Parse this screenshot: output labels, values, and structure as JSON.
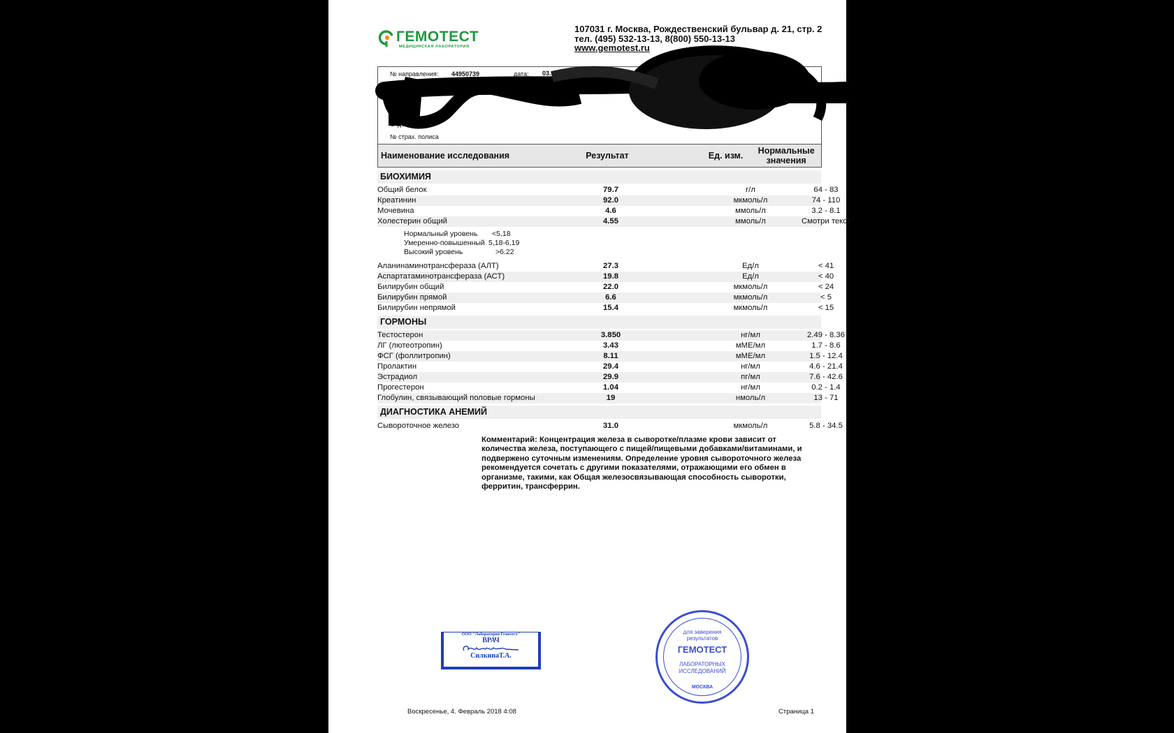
{
  "lab": {
    "logo_text": "ГЕМОТЕСТ",
    "logo_subtitle": "МЕДИЦИНСКАЯ ЛАБОРАТОРИЯ",
    "brand_color": "#1d9a3e",
    "address": "107031 г. Москва, Рождественский бульвар д. 21, стр. 2",
    "phone": "тел. (495) 532-13-13, 8(800) 550-13-13",
    "website": "www.gemotest.ru"
  },
  "info": {
    "referral_label": "№ направления:",
    "referral_number": "44950739",
    "date_label": "дата:",
    "date_value": "03.02.2018",
    "department_label": "Отделе",
    "policy_label": "№ страх. полиса"
  },
  "table_header": {
    "name": "Наименование исследования",
    "result": "Результат",
    "unit": "Ед. изм.",
    "norm": "Нормальные значения"
  },
  "sections": [
    {
      "title": "БИОХИМИЯ",
      "rows": [
        {
          "name": "Общий белок",
          "result": "79.7",
          "unit": "г/л",
          "norm": "64 - 83"
        },
        {
          "name": "Креатинин",
          "result": "92.0",
          "unit": "мкмоль/л",
          "norm": "74 - 110"
        },
        {
          "name": "Мочевина",
          "result": "4.6",
          "unit": "ммоль/л",
          "norm": "3.2 - 8.1"
        },
        {
          "name": "Холестерин общий",
          "result": "4.55",
          "unit": "ммоль/л",
          "norm": "Смотри текст"
        }
      ],
      "notes": [
        {
          "label": "Нормальный уровень",
          "value": "<5,18"
        },
        {
          "label": "Умеренно-повышенный",
          "value": "5,18-6,19"
        },
        {
          "label": "Высокий уровень",
          "value": ">6.22"
        }
      ],
      "rows_after_notes": [
        {
          "name": "Аланинаминотрансфераза (АЛТ)",
          "result": "27.3",
          "unit": "Ед/л",
          "norm": "< 41"
        },
        {
          "name": "Аспартатаминотрансфераза (АСТ)",
          "result": "19.8",
          "unit": "Ед/л",
          "norm": "< 40"
        },
        {
          "name": "Билирубин общий",
          "result": "22.0",
          "unit": "мкмоль/л",
          "norm": "< 24"
        },
        {
          "name": "Билирубин прямой",
          "result": "6.6",
          "unit": "мкмоль/л",
          "norm": "< 5"
        },
        {
          "name": "Билирубин непрямой",
          "result": "15.4",
          "unit": "мкмоль/л",
          "norm": "< 15"
        }
      ]
    },
    {
      "title": "ГОРМОНЫ",
      "rows": [
        {
          "name": "Тестостерон",
          "result": "3.850",
          "unit": "нг/мл",
          "norm": "2.49 - 8.36"
        },
        {
          "name": "ЛГ (лютеотропин)",
          "result": "3.43",
          "unit": "мМЕ/мл",
          "norm": "1.7 - 8.6"
        },
        {
          "name": "ФСГ (фоллитропин)",
          "result": "8.11",
          "unit": "мМЕ/мл",
          "norm": "1.5 - 12.4"
        },
        {
          "name": "Пролактин",
          "result": "29.4",
          "unit": "нг/мл",
          "norm": "4.6 - 21.4"
        },
        {
          "name": "Эстрадиол",
          "result": "29.9",
          "unit": "пг/мл",
          "norm": "7.6 - 42.6"
        },
        {
          "name": "Прогестерон",
          "result": "1.04",
          "unit": "нг/мл",
          "norm": "0.2 - 1.4"
        },
        {
          "name": "Глобулин, связывающий половые гормоны",
          "result": "19",
          "unit": "нмоль/л",
          "norm": "13 - 71"
        }
      ]
    },
    {
      "title": "ДИАГНОСТИКА АНЕМИЙ",
      "rows": [
        {
          "name": "Сывороточное железо",
          "result": "31.0",
          "unit": "мкмоль/л",
          "norm": "5.8 - 34.5"
        }
      ]
    }
  ],
  "comment": "Комментарий: Концентрация железа в сыворотке/плазме крови зависит от количества железа, поступающего с пищей/пищевыми добавками/витаминами, и подвержено суточным изменениям. Определение уровня сывороточного железа рекомендуется сочетать с другими показателями, отражающими его обмен в организме, такими, как Общая железосвязывающая способность сыворотки, ферритин, трансферрин.",
  "stamps": {
    "doctor_stamp": {
      "org": "ООО \"Лаборатория Гемотест\"",
      "title": "ВРАЧ",
      "name": "СилкинаТ.А.",
      "color": "#1f3fb8"
    },
    "round_stamp": {
      "top": "для заверения результатов",
      "brand": "ГЕМОТЕСТ",
      "bottom": "ЛАБОРАТОРНЫХ ИССЛЕДОВАНИЙ",
      "ring": "МОСКВА",
      "color": "#3a4fd0"
    }
  },
  "footer": {
    "printed": "Воскресенье, 4. Февраль 2018 4:08",
    "page": "Страница 1"
  }
}
